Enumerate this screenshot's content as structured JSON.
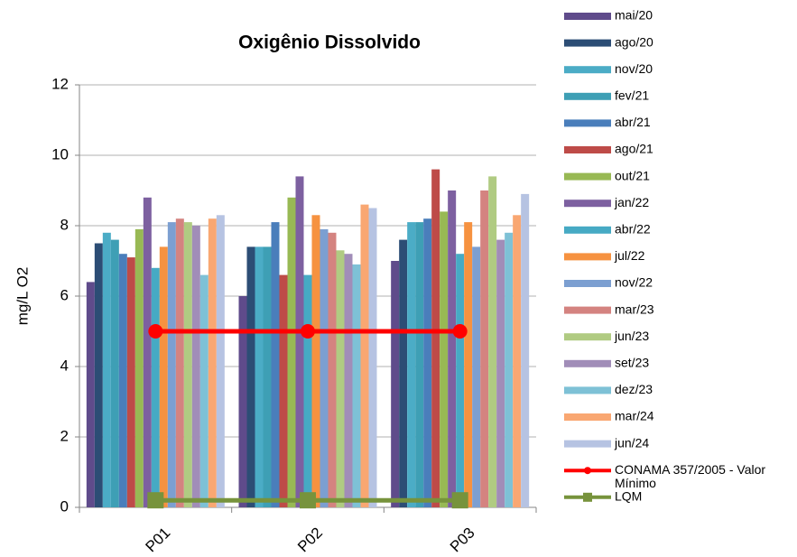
{
  "chart_data": {
    "type": "bar",
    "title": "Oxigênio Dissolvido",
    "y_label": "mg/L O2",
    "categories": [
      "P01",
      "P02",
      "P03"
    ],
    "ylim": [
      0,
      12
    ],
    "yticks": [
      0,
      2,
      4,
      6,
      8,
      10,
      12
    ],
    "grid": true,
    "legend": "right",
    "series": [
      {
        "name": "mai/20",
        "color": "#5f4b8b",
        "values": [
          6.4,
          6.0,
          7.0
        ]
      },
      {
        "name": "ago/20",
        "color": "#2c4d75",
        "values": [
          7.5,
          7.4,
          7.6
        ]
      },
      {
        "name": "nov/20",
        "color": "#4bacc6",
        "values": [
          7.8,
          7.4,
          8.1
        ]
      },
      {
        "name": "fev/21",
        "color": "#3e9fb5",
        "values": [
          7.6,
          7.4,
          8.1
        ]
      },
      {
        "name": "abr/21",
        "color": "#4a7ebb",
        "values": [
          7.2,
          8.1,
          8.2
        ]
      },
      {
        "name": "ago/21",
        "color": "#be4b48",
        "values": [
          7.1,
          6.6,
          9.6
        ]
      },
      {
        "name": "out/21",
        "color": "#98b954",
        "values": [
          7.9,
          8.8,
          8.4
        ]
      },
      {
        "name": "jan/22",
        "color": "#7d60a0",
        "values": [
          8.8,
          9.4,
          9.0
        ]
      },
      {
        "name": "abr/22",
        "color": "#46aac4",
        "values": [
          6.8,
          6.6,
          7.2
        ]
      },
      {
        "name": "jul/22",
        "color": "#f69240",
        "values": [
          7.4,
          8.3,
          8.1
        ]
      },
      {
        "name": "nov/22",
        "color": "#7c9fd1",
        "values": [
          8.1,
          7.9,
          7.4
        ]
      },
      {
        "name": "mar/23",
        "color": "#d48380",
        "values": [
          8.2,
          7.8,
          9.0
        ]
      },
      {
        "name": "jun/23",
        "color": "#b0cb82",
        "values": [
          8.1,
          7.3,
          9.4
        ]
      },
      {
        "name": "set/23",
        "color": "#a18db8",
        "values": [
          8.0,
          7.2,
          7.6
        ]
      },
      {
        "name": "dez/23",
        "color": "#7ec1d6",
        "values": [
          6.6,
          6.9,
          7.8
        ]
      },
      {
        "name": "mar/24",
        "color": "#f9a772",
        "values": [
          8.2,
          8.6,
          8.3
        ]
      },
      {
        "name": "jun/24",
        "color": "#b6c3e2",
        "values": [
          8.3,
          8.5,
          8.9
        ]
      },
      {
        "name": "CONAMA 357/2005 - Valor Mínimo",
        "type": "line",
        "marker": "circle",
        "color": "#ff0000",
        "values": [
          5,
          5,
          5
        ]
      },
      {
        "name": "LQM",
        "type": "line",
        "marker": "square",
        "color": "#77933c",
        "values": [
          0.2,
          0.2,
          0.2
        ]
      }
    ]
  }
}
